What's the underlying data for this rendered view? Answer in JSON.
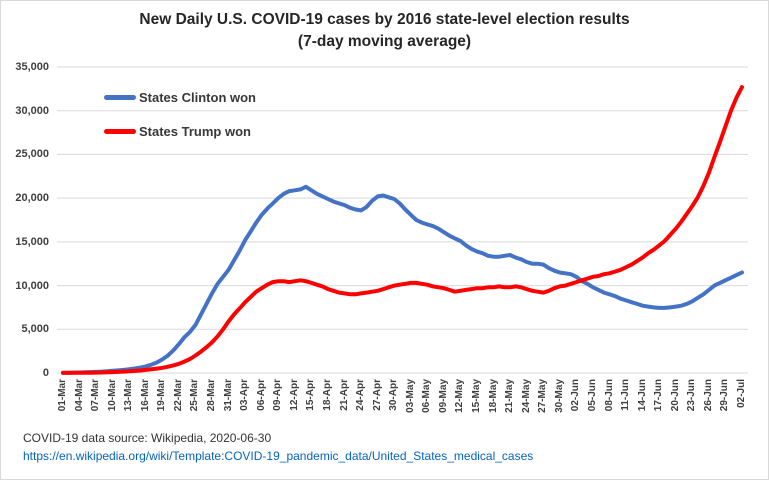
{
  "title": {
    "line1": "New Daily U.S. COVID-19 cases by 2016 state-level election results",
    "line2": "(7-day moving average)"
  },
  "footer": {
    "source": "COVID-19 data source: Wikipedia, 2020-06-30",
    "url": "https://en.wikipedia.org/wiki/Template:COVID-19_pandemic_data/United_States_medical_cases"
  },
  "colors": {
    "clinton_blue": "#4472C4",
    "trump_red": "#FF0000",
    "gridline": "#D9D9D9",
    "axis_text": "#404040",
    "title_text": "#262626",
    "link_blue": "#0563C1"
  },
  "chart_data": {
    "type": "line",
    "title": "New Daily U.S. COVID-19 cases by 2016 state-level election results (7-day moving average)",
    "xlabel": "",
    "ylabel": "",
    "ylim": [
      0,
      35000
    ],
    "ytick_step": 5000,
    "ytick_labels": [
      "0",
      "5,000",
      "10,000",
      "15,000",
      "20,000",
      "25,000",
      "30,000",
      "35,000"
    ],
    "grid": "horizontal",
    "legend_position": "top-left-inside",
    "x_tick_every": 3,
    "x": [
      "01-Mar",
      "02-Mar",
      "03-Mar",
      "04-Mar",
      "05-Mar",
      "06-Mar",
      "07-Mar",
      "08-Mar",
      "09-Mar",
      "10-Mar",
      "11-Mar",
      "12-Mar",
      "13-Mar",
      "14-Mar",
      "15-Mar",
      "16-Mar",
      "17-Mar",
      "18-Mar",
      "19-Mar",
      "20-Mar",
      "21-Mar",
      "22-Mar",
      "23-Mar",
      "24-Mar",
      "25-Mar",
      "26-Mar",
      "27-Mar",
      "28-Mar",
      "29-Mar",
      "30-Mar",
      "31-Mar",
      "01-Apr",
      "02-Apr",
      "03-Apr",
      "04-Apr",
      "05-Apr",
      "06-Apr",
      "07-Apr",
      "08-Apr",
      "09-Apr",
      "10-Apr",
      "11-Apr",
      "12-Apr",
      "13-Apr",
      "14-Apr",
      "15-Apr",
      "16-Apr",
      "17-Apr",
      "18-Apr",
      "19-Apr",
      "20-Apr",
      "21-Apr",
      "22-Apr",
      "23-Apr",
      "24-Apr",
      "25-Apr",
      "26-Apr",
      "27-Apr",
      "28-Apr",
      "29-Apr",
      "30-Apr",
      "01-May",
      "02-May",
      "03-May",
      "04-May",
      "05-May",
      "06-May",
      "07-May",
      "08-May",
      "09-May",
      "10-May",
      "11-May",
      "12-May",
      "13-May",
      "14-May",
      "15-May",
      "16-May",
      "17-May",
      "18-May",
      "19-May",
      "20-May",
      "21-May",
      "22-May",
      "23-May",
      "24-May",
      "25-May",
      "26-May",
      "27-May",
      "28-May",
      "29-May",
      "30-May",
      "31-May",
      "01-Jun",
      "02-Jun",
      "03-Jun",
      "04-Jun",
      "05-Jun",
      "06-Jun",
      "07-Jun",
      "08-Jun",
      "09-Jun",
      "10-Jun",
      "11-Jun",
      "12-Jun",
      "13-Jun",
      "14-Jun",
      "15-Jun",
      "16-Jun",
      "17-Jun",
      "18-Jun",
      "19-Jun",
      "20-Jun",
      "21-Jun",
      "22-Jun",
      "23-Jun",
      "24-Jun",
      "25-Jun",
      "26-Jun",
      "27-Jun",
      "28-Jun",
      "29-Jun",
      "30-Jun",
      "01-Jul",
      "02-Jul"
    ],
    "series": [
      {
        "id": "clinton",
        "name": "States Clinton won",
        "color": "#4472C4",
        "values": [
          30,
          40,
          50,
          60,
          80,
          100,
          130,
          160,
          200,
          250,
          300,
          360,
          430,
          520,
          620,
          750,
          950,
          1200,
          1550,
          2000,
          2600,
          3300,
          4100,
          4700,
          5500,
          6700,
          7900,
          9100,
          10200,
          11000,
          11800,
          12900,
          14000,
          15200,
          16200,
          17200,
          18100,
          18800,
          19400,
          20000,
          20500,
          20800,
          20900,
          21000,
          21300,
          20900,
          20500,
          20200,
          19900,
          19600,
          19400,
          19200,
          18900,
          18700,
          18600,
          19000,
          19700,
          20200,
          20300,
          20100,
          19900,
          19400,
          18700,
          18100,
          17500,
          17200,
          17000,
          16800,
          16500,
          16100,
          15700,
          15400,
          15100,
          14600,
          14200,
          13900,
          13700,
          13400,
          13300,
          13300,
          13400,
          13500,
          13200,
          13000,
          12700,
          12500,
          12500,
          12400,
          12000,
          11700,
          11500,
          11400,
          11300,
          11000,
          10500,
          10200,
          9800,
          9500,
          9200,
          9000,
          8800,
          8500,
          8300,
          8100,
          7900,
          7700,
          7600,
          7500,
          7450,
          7450,
          7500,
          7600,
          7700,
          7900,
          8200,
          8600,
          9000,
          9500,
          10000,
          10300,
          10600,
          10900,
          11200,
          11500
        ]
      },
      {
        "id": "trump",
        "name": "States Trump won",
        "color": "#FF0000",
        "values": [
          10,
          15,
          20,
          25,
          30,
          40,
          50,
          60,
          80,
          100,
          130,
          160,
          200,
          240,
          290,
          350,
          420,
          500,
          600,
          720,
          870,
          1050,
          1300,
          1600,
          2000,
          2450,
          2950,
          3500,
          4200,
          5000,
          5900,
          6700,
          7400,
          8100,
          8700,
          9300,
          9700,
          10100,
          10400,
          10500,
          10500,
          10400,
          10500,
          10600,
          10500,
          10300,
          10100,
          9900,
          9600,
          9400,
          9200,
          9100,
          9000,
          9000,
          9100,
          9200,
          9300,
          9400,
          9600,
          9800,
          10000,
          10100,
          10200,
          10300,
          10300,
          10200,
          10100,
          9900,
          9800,
          9700,
          9500,
          9300,
          9400,
          9500,
          9600,
          9700,
          9700,
          9800,
          9800,
          9900,
          9800,
          9800,
          9900,
          9800,
          9600,
          9400,
          9300,
          9200,
          9400,
          9700,
          9900,
          10000,
          10200,
          10400,
          10600,
          10800,
          11000,
          11100,
          11300,
          11400,
          11600,
          11800,
          12100,
          12400,
          12800,
          13200,
          13700,
          14100,
          14600,
          15100,
          15800,
          16500,
          17300,
          18200,
          19100,
          20100,
          21400,
          22900,
          24700,
          26400,
          28200,
          30000,
          31500,
          32700
        ]
      }
    ]
  }
}
